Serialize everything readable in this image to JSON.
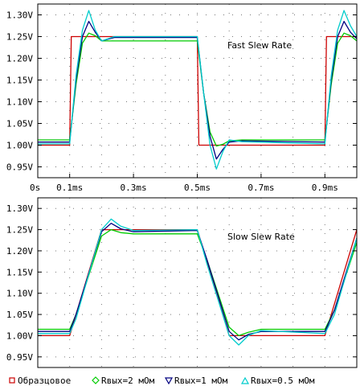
{
  "chart_data": [
    {
      "type": "line",
      "annotation": "Fast Slew Rate",
      "xlim": [
        0,
        1.0
      ],
      "ylim": [
        0.925,
        1.325
      ],
      "x_tick_values": [
        0,
        0.1,
        0.3,
        0.5,
        0.7,
        0.9
      ],
      "x_tick_labels": [
        "0s",
        "0.1ms",
        "0.3ms",
        "0.5ms",
        "0.7ms",
        "0.9ms"
      ],
      "y_tick_values": [
        0.95,
        1.0,
        1.05,
        1.1,
        1.15,
        1.2,
        1.25,
        1.3
      ],
      "y_tick_labels": [
        "0.95V",
        "1.00V",
        "1.05V",
        "1.10V",
        "1.15V",
        "1.20V",
        "1.25V",
        "1.30V"
      ],
      "grid": "dotted",
      "series": [
        {
          "name": "Образцовое",
          "color": "#cc0000",
          "points": [
            [
              0.0,
              1.0
            ],
            [
              0.1,
              1.0
            ],
            [
              0.105,
              1.25
            ],
            [
              0.5,
              1.25
            ],
            [
              0.505,
              1.0
            ],
            [
              0.9,
              1.0
            ],
            [
              0.905,
              1.25
            ],
            [
              1.0,
              1.25
            ]
          ]
        },
        {
          "name": "Rвых=2 мОм",
          "color": "#00cc00",
          "points": [
            [
              0.0,
              1.012
            ],
            [
              0.1,
              1.012
            ],
            [
              0.12,
              1.14
            ],
            [
              0.14,
              1.235
            ],
            [
              0.16,
              1.258
            ],
            [
              0.18,
              1.252
            ],
            [
              0.2,
              1.24
            ],
            [
              0.24,
              1.24
            ],
            [
              0.5,
              1.24
            ],
            [
              0.52,
              1.12
            ],
            [
              0.54,
              1.03
            ],
            [
              0.56,
              0.998
            ],
            [
              0.58,
              1.002
            ],
            [
              0.6,
              1.01
            ],
            [
              0.64,
              1.012
            ],
            [
              0.9,
              1.012
            ],
            [
              0.92,
              1.14
            ],
            [
              0.94,
              1.235
            ],
            [
              0.96,
              1.258
            ],
            [
              0.98,
              1.252
            ],
            [
              1.0,
              1.24
            ]
          ]
        },
        {
          "name": "Rвых=1 мОм",
          "color": "#000080",
          "points": [
            [
              0.0,
              1.007
            ],
            [
              0.1,
              1.007
            ],
            [
              0.12,
              1.15
            ],
            [
              0.14,
              1.25
            ],
            [
              0.16,
              1.285
            ],
            [
              0.18,
              1.26
            ],
            [
              0.2,
              1.24
            ],
            [
              0.24,
              1.248
            ],
            [
              0.5,
              1.248
            ],
            [
              0.52,
              1.12
            ],
            [
              0.54,
              1.02
            ],
            [
              0.56,
              0.968
            ],
            [
              0.58,
              0.99
            ],
            [
              0.6,
              1.007
            ],
            [
              0.64,
              1.01
            ],
            [
              0.9,
              1.007
            ],
            [
              0.92,
              1.15
            ],
            [
              0.94,
              1.25
            ],
            [
              0.96,
              1.285
            ],
            [
              0.98,
              1.26
            ],
            [
              1.0,
              1.245
            ]
          ]
        },
        {
          "name": "Rвых=0.5 мОм",
          "color": "#00cccc",
          "points": [
            [
              0.0,
              1.003
            ],
            [
              0.1,
              1.003
            ],
            [
              0.12,
              1.16
            ],
            [
              0.14,
              1.265
            ],
            [
              0.16,
              1.31
            ],
            [
              0.18,
              1.265
            ],
            [
              0.2,
              1.24
            ],
            [
              0.24,
              1.25
            ],
            [
              0.5,
              1.25
            ],
            [
              0.52,
              1.12
            ],
            [
              0.54,
              1.0
            ],
            [
              0.56,
              0.945
            ],
            [
              0.58,
              0.985
            ],
            [
              0.6,
              1.012
            ],
            [
              0.64,
              1.008
            ],
            [
              0.9,
              1.003
            ],
            [
              0.92,
              1.16
            ],
            [
              0.94,
              1.265
            ],
            [
              0.96,
              1.31
            ],
            [
              0.98,
              1.275
            ],
            [
              1.0,
              1.25
            ]
          ]
        }
      ]
    },
    {
      "type": "line",
      "annotation": "Slow Slew Rate",
      "xlim": [
        0,
        1.0
      ],
      "ylim": [
        0.925,
        1.325
      ],
      "y_tick_values": [
        0.95,
        1.0,
        1.05,
        1.1,
        1.15,
        1.2,
        1.25,
        1.3
      ],
      "y_tick_labels": [
        "0.95V",
        "1.00V",
        "1.05V",
        "1.10V",
        "1.15V",
        "1.20V",
        "1.25V",
        "1.30V"
      ],
      "grid": "dotted",
      "series": [
        {
          "name": "Образцовое",
          "color": "#cc0000",
          "points": [
            [
              0.0,
              1.0
            ],
            [
              0.1,
              1.0
            ],
            [
              0.2,
              1.25
            ],
            [
              0.5,
              1.25
            ],
            [
              0.6,
              1.0
            ],
            [
              0.9,
              1.0
            ],
            [
              1.0,
              1.25
            ]
          ]
        },
        {
          "name": "Rвых=2 мОм",
          "color": "#00cc00",
          "points": [
            [
              0.0,
              1.015
            ],
            [
              0.1,
              1.015
            ],
            [
              0.12,
              1.05
            ],
            [
              0.2,
              1.235
            ],
            [
              0.23,
              1.25
            ],
            [
              0.26,
              1.243
            ],
            [
              0.3,
              1.24
            ],
            [
              0.5,
              1.24
            ],
            [
              0.53,
              1.18
            ],
            [
              0.6,
              1.02
            ],
            [
              0.63,
              1.0
            ],
            [
              0.66,
              1.008
            ],
            [
              0.7,
              1.015
            ],
            [
              0.9,
              1.015
            ],
            [
              0.93,
              1.06
            ],
            [
              1.0,
              1.22
            ]
          ]
        },
        {
          "name": "Rвых=1 мОм",
          "color": "#000080",
          "points": [
            [
              0.0,
              1.01
            ],
            [
              0.1,
              1.01
            ],
            [
              0.12,
              1.05
            ],
            [
              0.2,
              1.245
            ],
            [
              0.23,
              1.265
            ],
            [
              0.26,
              1.252
            ],
            [
              0.3,
              1.245
            ],
            [
              0.5,
              1.248
            ],
            [
              0.53,
              1.18
            ],
            [
              0.6,
              1.01
            ],
            [
              0.63,
              0.99
            ],
            [
              0.66,
              1.003
            ],
            [
              0.7,
              1.01
            ],
            [
              0.9,
              1.01
            ],
            [
              0.93,
              1.06
            ],
            [
              1.0,
              1.23
            ]
          ]
        },
        {
          "name": "Rвых=0.5 мОм",
          "color": "#00cccc",
          "points": [
            [
              0.0,
              1.005
            ],
            [
              0.1,
              1.005
            ],
            [
              0.12,
              1.04
            ],
            [
              0.2,
              1.25
            ],
            [
              0.23,
              1.275
            ],
            [
              0.26,
              1.258
            ],
            [
              0.3,
              1.248
            ],
            [
              0.5,
              1.25
            ],
            [
              0.53,
              1.17
            ],
            [
              0.6,
              1.0
            ],
            [
              0.63,
              0.978
            ],
            [
              0.66,
              1.0
            ],
            [
              0.7,
              1.012
            ],
            [
              0.9,
              1.005
            ],
            [
              0.93,
              1.05
            ],
            [
              1.0,
              1.23
            ]
          ]
        }
      ]
    }
  ],
  "legend": {
    "position": "bottom",
    "items": [
      {
        "label": "Образцовое",
        "color": "#cc0000",
        "marker": "square"
      },
      {
        "label": "Rвых=2 мОм",
        "color": "#00cc00",
        "marker": "diamond"
      },
      {
        "label": "Rвых=1 мОм",
        "color": "#000080",
        "marker": "triangle-down"
      },
      {
        "label": "Rвых=0.5 мОм",
        "color": "#00cccc",
        "marker": "triangle-up"
      }
    ]
  }
}
